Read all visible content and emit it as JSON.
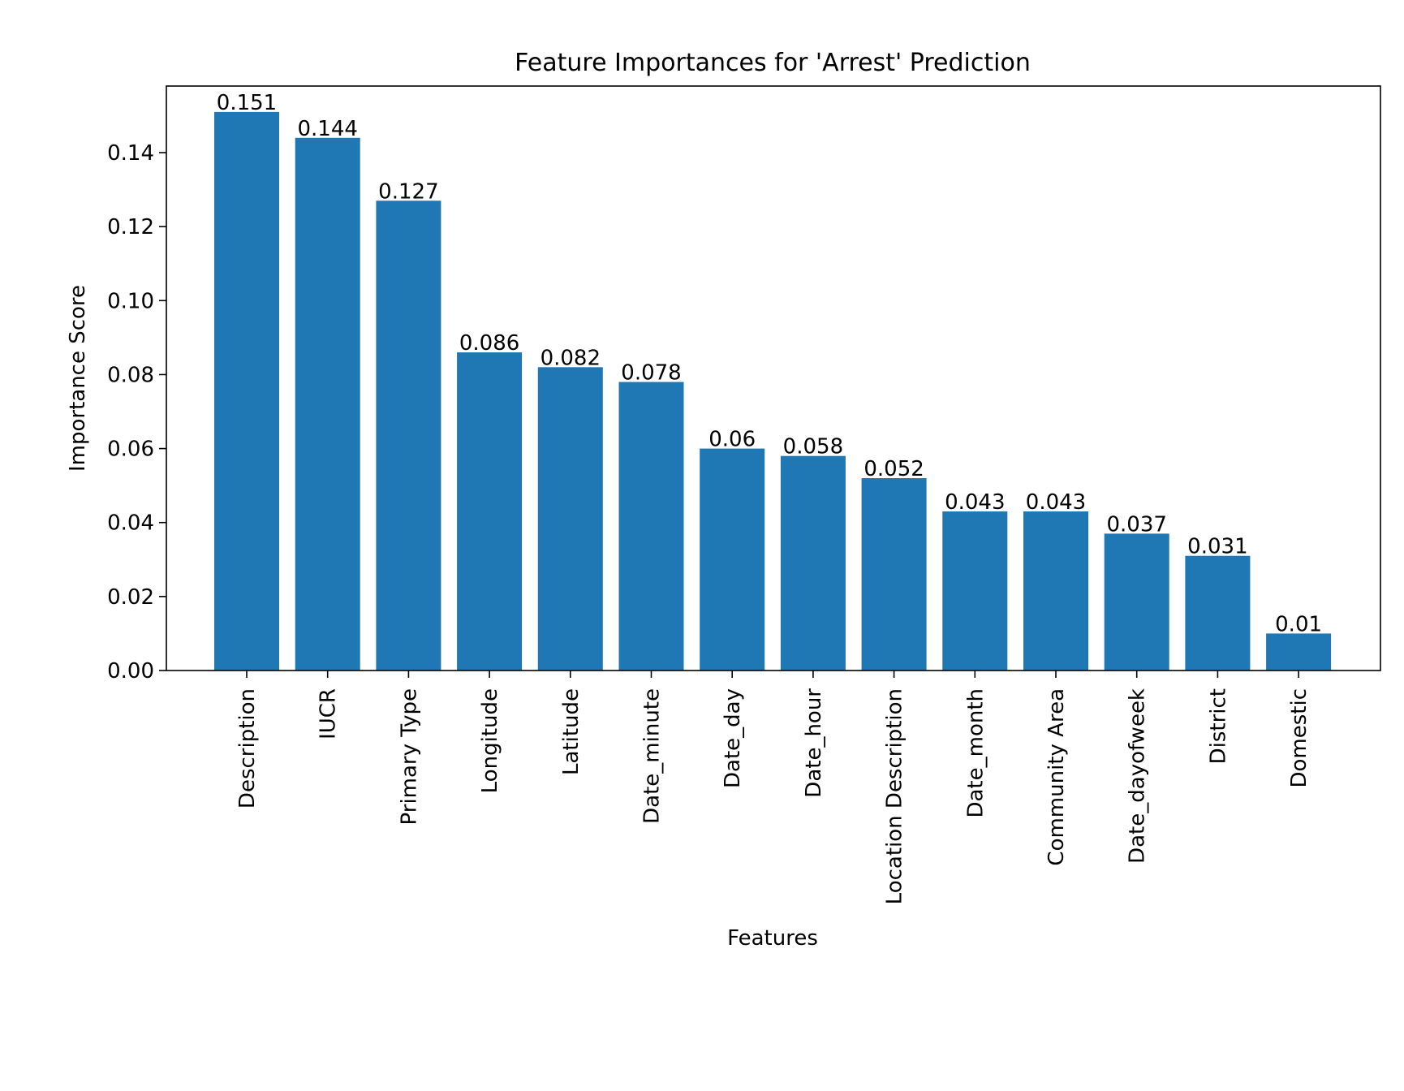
{
  "chart_data": {
    "type": "bar",
    "title": "Feature Importances for 'Arrest' Prediction",
    "xlabel": "Features",
    "ylabel": "Importance Score",
    "ylim": [
      0,
      0.158
    ],
    "yticks": [
      0.0,
      0.02,
      0.04,
      0.06,
      0.08,
      0.1,
      0.12,
      0.14
    ],
    "ytick_labels": [
      "0.00",
      "0.02",
      "0.04",
      "0.06",
      "0.08",
      "0.10",
      "0.12",
      "0.14"
    ],
    "grid": false,
    "bar_color": "#1f77b4",
    "categories": [
      "Description",
      "IUCR",
      "Primary Type",
      "Longitude",
      "Latitude",
      "Date_minute",
      "Date_day",
      "Date_hour",
      "Location Description",
      "Date_month",
      "Community Area",
      "Date_dayofweek",
      "District",
      "Domestic"
    ],
    "values": [
      0.151,
      0.144,
      0.127,
      0.086,
      0.082,
      0.078,
      0.06,
      0.058,
      0.052,
      0.043,
      0.043,
      0.037,
      0.031,
      0.01
    ],
    "value_labels": [
      "0.151",
      "0.144",
      "0.127",
      "0.086",
      "0.082",
      "0.078",
      "0.06",
      "0.058",
      "0.052",
      "0.043",
      "0.043",
      "0.037",
      "0.031",
      "0.01"
    ]
  }
}
